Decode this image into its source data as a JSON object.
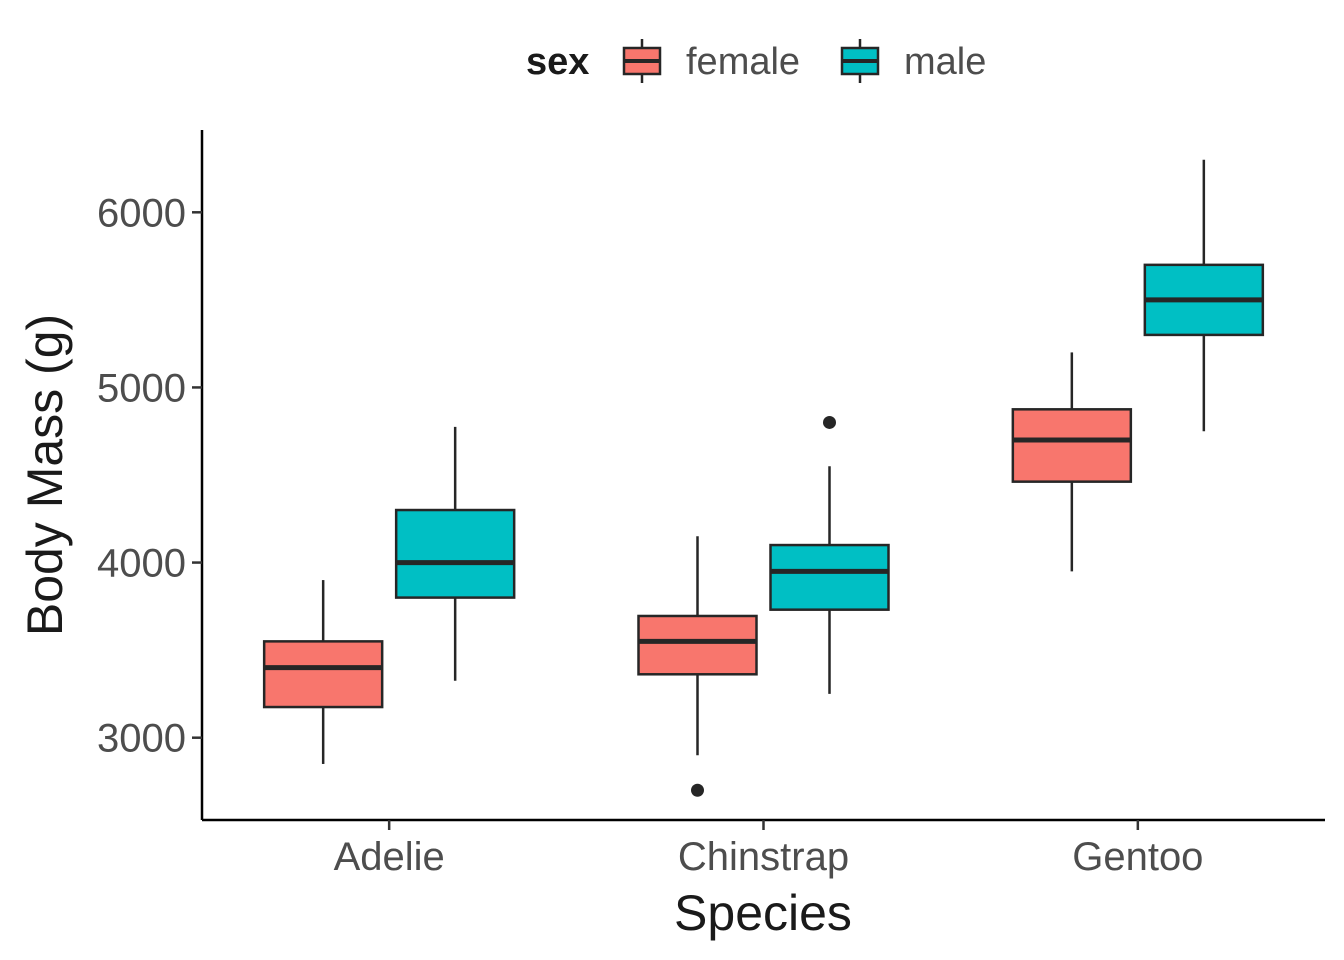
{
  "chart_data": {
    "type": "boxplot",
    "xlabel": "Species",
    "ylabel": "Body Mass (g)",
    "categories": [
      "Adelie",
      "Chinstrap",
      "Gentoo"
    ],
    "y_ticks": [
      3000,
      4000,
      5000,
      6000
    ],
    "ylim": [
      2530,
      6470
    ],
    "legend": {
      "title": "sex",
      "position": "top"
    },
    "series": [
      {
        "name": "female",
        "color": "#F8766D",
        "boxes": [
          {
            "category": "Adelie",
            "min": 2850,
            "q1": 3175,
            "median": 3400,
            "q3": 3550,
            "max": 3900,
            "outliers": []
          },
          {
            "category": "Chinstrap",
            "min": 2900,
            "q1": 3362,
            "median": 3550,
            "q3": 3695,
            "max": 4150,
            "outliers": [
              2700
            ]
          },
          {
            "category": "Gentoo",
            "min": 3950,
            "q1": 4462,
            "median": 4700,
            "q3": 4875,
            "max": 5200,
            "outliers": []
          }
        ]
      },
      {
        "name": "male",
        "color": "#00BFC4",
        "boxes": [
          {
            "category": "Adelie",
            "min": 3325,
            "q1": 3800,
            "median": 4000,
            "q3": 4300,
            "max": 4775,
            "outliers": []
          },
          {
            "category": "Chinstrap",
            "min": 3250,
            "q1": 3731,
            "median": 3950,
            "q3": 4100,
            "max": 4550,
            "outliers": [
              4800
            ]
          },
          {
            "category": "Gentoo",
            "min": 4750,
            "q1": 5300,
            "median": 5500,
            "q3": 5700,
            "max": 6300,
            "outliers": []
          }
        ]
      }
    ],
    "grid": false
  }
}
